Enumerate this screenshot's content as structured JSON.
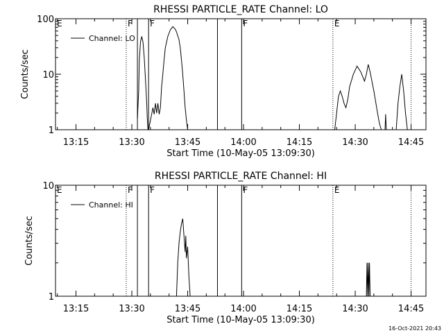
{
  "timestamp": "16-Oct-2021 20:43",
  "chart_data": [
    {
      "type": "line",
      "title": "RHESSI PARTICLE_RATE Channel: LO",
      "xlabel": "Start Time (10-May-05 13:09:30)",
      "ylabel": "Counts/sec",
      "yscale": "log",
      "ylim": [
        1,
        100
      ],
      "y_ticks": [
        {
          "value": 1,
          "label": "1"
        },
        {
          "value": 10,
          "label": "10"
        },
        {
          "value": 100,
          "label": "100"
        }
      ],
      "xlim": [
        "13:09:30",
        "14:49:00"
      ],
      "x_ticks": [
        {
          "time": "13:15",
          "label": "13:15"
        },
        {
          "time": "13:30",
          "label": "13:30"
        },
        {
          "time": "13:45",
          "label": "13:45"
        },
        {
          "time": "14:00",
          "label": "14:00"
        },
        {
          "time": "14:15",
          "label": "14:15"
        },
        {
          "time": "14:30",
          "label": "14:30"
        },
        {
          "time": "14:45",
          "label": "14:45"
        }
      ],
      "legend": {
        "label": "Channel: LO",
        "position": "top-left"
      },
      "markers": [
        {
          "time": "13:09:30",
          "style": "dotted",
          "label": "E"
        },
        {
          "time": "13:28:30",
          "style": "dotted",
          "label": "F"
        },
        {
          "time": "13:31:30",
          "style": "solid",
          "label": ""
        },
        {
          "time": "13:34:30",
          "style": "solid",
          "label": "F"
        },
        {
          "time": "13:53:00",
          "style": "solid",
          "label": ""
        },
        {
          "time": "13:59:30",
          "style": "solid",
          "label": "F"
        },
        {
          "time": "14:24:00",
          "style": "dotted",
          "label": "E"
        },
        {
          "time": "14:45:00",
          "style": "dotted",
          "label": ""
        }
      ],
      "series": [
        {
          "x": [
            "13:31:30",
            "13:31:50",
            "13:32:00",
            "13:32:20",
            "13:32:40",
            "13:33:00",
            "13:33:20",
            "13:33:40",
            "13:34:00",
            "13:34:10",
            "13:34:20"
          ],
          "values": [
            1.6,
            5,
            18,
            38,
            48,
            38,
            20,
            8,
            3,
            1.5,
            1
          ]
        },
        {
          "x": [
            "13:34:30",
            "13:35:20",
            "13:35:40",
            "13:36:00",
            "13:36:20",
            "13:36:40",
            "13:37:00",
            "13:37:20",
            "13:37:40",
            "13:38:00",
            "13:38:20",
            "13:38:40",
            "13:39:00",
            "13:39:40",
            "13:40:20",
            "13:41:00",
            "13:41:40",
            "13:42:00",
            "13:42:40",
            "13:43:00",
            "13:43:20",
            "13:43:40",
            "13:44:00",
            "13:44:20",
            "13:44:40",
            "13:45:00",
            "13:45:20",
            "13:45:40",
            "13:46:00",
            "13:46:20"
          ],
          "values": [
            1,
            1.9,
            2.5,
            1.9,
            3,
            2,
            3,
            1.9,
            2.5,
            6,
            10,
            18,
            30,
            48,
            63,
            72,
            65,
            58,
            42,
            30,
            18,
            10,
            5,
            2.5,
            1.5,
            1,
            1,
            1,
            1,
            1
          ]
        },
        {
          "x": [
            "14:24:30",
            "14:25:00",
            "14:25:30",
            "14:26:00",
            "14:26:30",
            "14:27:00",
            "14:27:30",
            "14:28:00",
            "14:28:30",
            "14:29:30",
            "14:30:30",
            "14:31:30",
            "14:32:30",
            "14:33:00",
            "14:33:30",
            "14:34:00",
            "14:35:00",
            "14:36:00",
            "14:36:30",
            "14:37:00",
            "14:37:30",
            "14:38:00",
            "14:38:10",
            "14:38:20",
            "14:38:30",
            "14:38:50",
            "14:39:10",
            "14:39:30"
          ],
          "values": [
            1,
            2,
            4,
            5,
            4,
            3,
            2.5,
            3.5,
            6,
            10,
            14,
            11,
            7.5,
            10,
            15,
            11,
            5,
            2,
            1.3,
            1,
            1,
            1,
            1.9,
            1,
            1,
            1,
            1,
            1
          ]
        },
        {
          "x": [
            "14:39:30",
            "14:40:00",
            "14:41:00",
            "14:41:30",
            "14:42:00",
            "14:42:30",
            "14:43:00",
            "14:43:30",
            "14:44:00"
          ],
          "values": [
            1,
            1,
            1,
            3,
            6,
            10,
            5,
            2,
            1
          ]
        }
      ]
    },
    {
      "type": "line",
      "title": "RHESSI PARTICLE_RATE Channel: HI",
      "xlabel": "Start Time (10-May-05 13:09:30)",
      "ylabel": "Counts/sec",
      "yscale": "log",
      "ylim": [
        1,
        10
      ],
      "y_ticks": [
        {
          "value": 1,
          "label": "1"
        },
        {
          "value": 10,
          "label": "10"
        }
      ],
      "xlim": [
        "13:09:30",
        "14:49:00"
      ],
      "x_ticks": [
        {
          "time": "13:15",
          "label": "13:15"
        },
        {
          "time": "13:30",
          "label": "13:30"
        },
        {
          "time": "13:45",
          "label": "13:45"
        },
        {
          "time": "14:00",
          "label": "14:00"
        },
        {
          "time": "14:15",
          "label": "14:15"
        },
        {
          "time": "14:30",
          "label": "14:30"
        },
        {
          "time": "14:45",
          "label": "14:45"
        }
      ],
      "legend": {
        "label": "Channel: HI",
        "position": "top-left"
      },
      "markers": [
        {
          "time": "13:09:30",
          "style": "dotted",
          "label": "E"
        },
        {
          "time": "13:28:30",
          "style": "dotted",
          "label": "F"
        },
        {
          "time": "13:31:30",
          "style": "solid",
          "label": ""
        },
        {
          "time": "13:34:30",
          "style": "solid",
          "label": "F"
        },
        {
          "time": "13:53:00",
          "style": "solid",
          "label": ""
        },
        {
          "time": "13:59:30",
          "style": "solid",
          "label": "F"
        },
        {
          "time": "14:24:00",
          "style": "dotted",
          "label": "E"
        },
        {
          "time": "14:45:00",
          "style": "dotted",
          "label": ""
        }
      ],
      "series": [
        {
          "x": [
            "13:42:00",
            "13:42:20",
            "13:42:40",
            "13:43:00",
            "13:43:20",
            "13:43:40",
            "13:44:00",
            "13:44:20",
            "13:44:30",
            "13:44:40",
            "13:45:00",
            "13:45:20",
            "13:45:40"
          ],
          "values": [
            1,
            2,
            3,
            3.8,
            4.5,
            5,
            3.5,
            2.5,
            3.5,
            2.2,
            2.8,
            1.5,
            1
          ]
        },
        {
          "x": [
            "14:33:00",
            "14:33:10",
            "14:33:20",
            "14:33:30",
            "14:33:40",
            "14:33:50",
            "14:34:00",
            "14:34:10"
          ],
          "values": [
            1,
            2,
            1,
            2,
            1,
            2,
            1,
            1
          ]
        }
      ]
    }
  ]
}
